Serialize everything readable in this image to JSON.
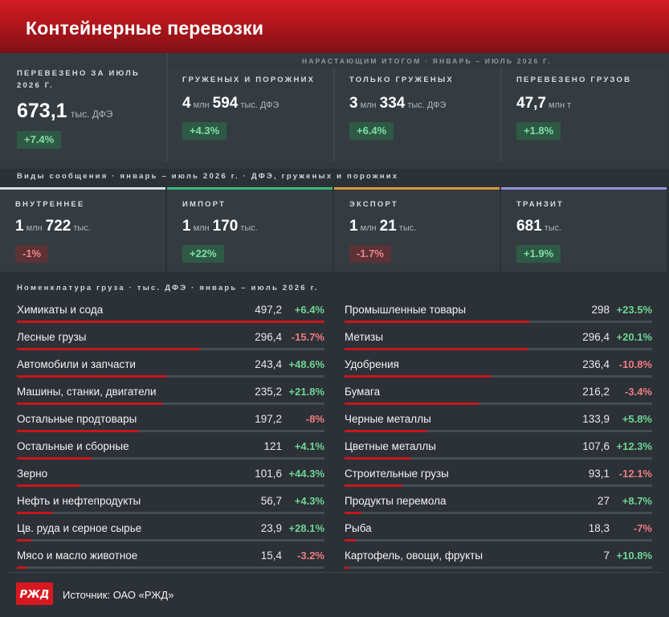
{
  "header": {
    "title": "Контейнерные перевозки"
  },
  "summary": {
    "july": {
      "label": "Перевезено за июль 2026 г.",
      "big": "673,1",
      "unit": "тыс. ДФЭ",
      "change": "+7.4%"
    },
    "cumulative_label": "Нарастающим итогом · январь – июль 2026 г.",
    "cards": [
      {
        "label": "Груженых и порожних",
        "value_a": "4",
        "unit_a": "млн",
        "value_b": "594",
        "unit_b": "тыс. ДФЭ",
        "change": "+4.3%"
      },
      {
        "label": "Только груженых",
        "value_a": "3",
        "unit_a": "млн",
        "value_b": "334",
        "unit_b": "тыс. ДФЭ",
        "change": "+6.4%"
      },
      {
        "label": "Перевезено грузов",
        "value_a": "47,7",
        "unit_a": "млн т",
        "value_b": "",
        "unit_b": "",
        "change": "+1.8%"
      }
    ]
  },
  "traffic": {
    "title": "Виды сообщения · январь – июль 2026 г. · ДФЭ, груженых и порожних",
    "items": [
      {
        "label": "Внутреннее",
        "value_a": "1",
        "unit_a": "млн",
        "value_b": "722",
        "unit_b": "тыс.",
        "change": "-1%",
        "color": "#d9dde0"
      },
      {
        "label": "Импорт",
        "value_a": "1",
        "unit_a": "млн",
        "value_b": "170",
        "unit_b": "тыс.",
        "change": "+22%",
        "color": "#3fb877"
      },
      {
        "label": "Экспорт",
        "value_a": "1",
        "unit_a": "млн",
        "value_b": "21",
        "unit_b": "тыс.",
        "change": "-1.7%",
        "color": "#d99a3a"
      },
      {
        "label": "Транзит",
        "value_a": "681",
        "unit_a": "тыс.",
        "value_b": "",
        "unit_b": "",
        "change": "+1.9%",
        "color": "#9a8fe0"
      }
    ]
  },
  "colors": {
    "accent": "#c8161d",
    "positive": "#6fd695",
    "negative": "#ef7d82"
  },
  "chart_data": {
    "type": "bar",
    "title": "Номенклатура груза · тыс. ДФЭ · январь – июль 2026 г.",
    "bar_max": 497.2,
    "series": [
      {
        "values": [
          {
            "name": "Химикаты и сода",
            "value": "497,2",
            "change": "+6.4%"
          },
          {
            "name": "Лесные грузы",
            "value": "296,4",
            "change": "-15.7%"
          },
          {
            "name": "Автомобили и запчасти",
            "value": "243,4",
            "change": "+48.6%"
          },
          {
            "name": "Машины, станки, двигатели",
            "value": "235,2",
            "change": "+21.8%"
          },
          {
            "name": "Остальные продтовары",
            "value": "197,2",
            "change": "-8%"
          },
          {
            "name": "Остальные и сборные",
            "value": "121",
            "change": "+4.1%"
          },
          {
            "name": "Зерно",
            "value": "101,6",
            "change": "+44.3%"
          },
          {
            "name": "Нефть и нефтепродукты",
            "value": "56,7",
            "change": "+4.3%"
          },
          {
            "name": "Цв. руда и серное сырье",
            "value": "23,9",
            "change": "+28.1%"
          },
          {
            "name": "Мясо и масло животное",
            "value": "15,4",
            "change": "-3.2%"
          }
        ]
      },
      {
        "values": [
          {
            "name": "Промышленные товары",
            "value": "298",
            "change": "+23.5%"
          },
          {
            "name": "Метизы",
            "value": "296,4",
            "change": "+20.1%"
          },
          {
            "name": "Удобрения",
            "value": "236,4",
            "change": "-10.8%"
          },
          {
            "name": "Бумага",
            "value": "216,2",
            "change": "-3.4%"
          },
          {
            "name": "Черные металлы",
            "value": "133,9",
            "change": "+5.8%"
          },
          {
            "name": "Цветные металлы",
            "value": "107,6",
            "change": "+12.3%"
          },
          {
            "name": "Строительные грузы",
            "value": "93,1",
            "change": "-12.1%"
          },
          {
            "name": "Продукты перемола",
            "value": "27",
            "change": "+8.7%"
          },
          {
            "name": "Рыба",
            "value": "18,3",
            "change": "-7%"
          },
          {
            "name": "Картофель, овощи, фрукты",
            "value": "7",
            "change": "+10.8%"
          }
        ]
      }
    ]
  },
  "footer": {
    "logo_text": "РЖД",
    "source": "Источник: ОАО «РЖД»"
  }
}
